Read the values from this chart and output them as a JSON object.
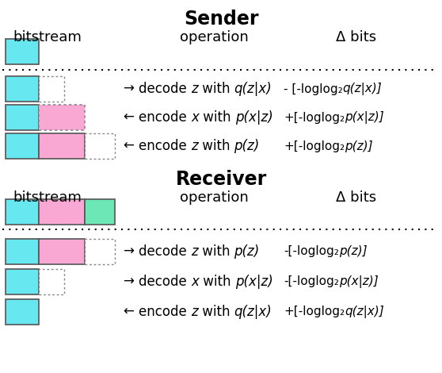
{
  "title_sender": "Sender",
  "title_receiver": "Receiver",
  "col_bitstream": "bitstream",
  "col_operation": "operation",
  "col_delta": "Δ bits",
  "cyan": "#67e8f0",
  "pink": "#f9a8d4",
  "mint": "#6ee7b7",
  "white": "#ffffff",
  "bg": "#ffffff",
  "sender_init_blocks": [
    {
      "color": "#67e8f0",
      "filled": true,
      "dotted": false
    }
  ],
  "sender_rows": [
    {
      "blocks": [
        {
          "color": "#67e8f0",
          "filled": true,
          "dotted": false
        },
        {
          "color": "#ffffff",
          "filled": false,
          "dotted": true
        }
      ],
      "arrow": "→",
      "op_parts": [
        "decode ",
        "z",
        " with ",
        "q(z|x)"
      ],
      "op_italic": [
        false,
        true,
        false,
        true
      ],
      "delta": "- [-log",
      "delta_sub": "2",
      "delta_end": "q(z|x)]",
      "delta_end_italic": true
    },
    {
      "blocks": [
        {
          "color": "#67e8f0",
          "filled": true,
          "dotted": false
        },
        {
          "color": "#f9a8d4",
          "filled": true,
          "dotted": true
        }
      ],
      "arrow": "←",
      "op_parts": [
        "encode ",
        "x",
        " with ",
        "p(x|z)"
      ],
      "op_italic": [
        false,
        true,
        false,
        true
      ],
      "delta": "+[-log",
      "delta_sub": "2",
      "delta_end": "p(x|z)]",
      "delta_end_italic": true
    },
    {
      "blocks": [
        {
          "color": "#67e8f0",
          "filled": true,
          "dotted": false
        },
        {
          "color": "#f9a8d4",
          "filled": true,
          "dotted": false
        },
        {
          "color": "#6ee7b7",
          "filled": false,
          "dotted": true
        }
      ],
      "arrow": "←",
      "op_parts": [
        "encode ",
        "z",
        " with ",
        "p(z)"
      ],
      "op_italic": [
        false,
        true,
        false,
        true
      ],
      "delta": "+[-log",
      "delta_sub": "2",
      "delta_end": "p(z)]",
      "delta_end_italic": true
    }
  ],
  "receiver_init_blocks": [
    {
      "color": "#67e8f0",
      "filled": true,
      "dotted": false
    },
    {
      "color": "#f9a8d4",
      "filled": true,
      "dotted": false
    },
    {
      "color": "#6ee7b7",
      "filled": true,
      "dotted": false
    }
  ],
  "receiver_rows": [
    {
      "blocks": [
        {
          "color": "#67e8f0",
          "filled": true,
          "dotted": false
        },
        {
          "color": "#f9a8d4",
          "filled": true,
          "dotted": false
        },
        {
          "color": "#ffffff",
          "filled": false,
          "dotted": true
        }
      ],
      "arrow": "→",
      "op_parts": [
        "decode ",
        "z",
        " with ",
        "p(z)"
      ],
      "op_italic": [
        false,
        true,
        false,
        true
      ],
      "delta": "-[-log",
      "delta_sub": "2",
      "delta_end": "p(z)]",
      "delta_end_italic": true
    },
    {
      "blocks": [
        {
          "color": "#67e8f0",
          "filled": true,
          "dotted": false
        },
        {
          "color": "#ffffff",
          "filled": false,
          "dotted": true
        }
      ],
      "arrow": "→",
      "op_parts": [
        "decode ",
        "x",
        " with ",
        "p(x|z)"
      ],
      "op_italic": [
        false,
        true,
        false,
        true
      ],
      "delta": "-[-log",
      "delta_sub": "2",
      "delta_end": "p(x|z)]",
      "delta_end_italic": true
    },
    {
      "blocks": [
        {
          "color": "#67e8f0",
          "filled": true,
          "dotted": false
        }
      ],
      "arrow": "←",
      "op_parts": [
        "encode ",
        "z",
        " with ",
        "q(z|x)"
      ],
      "op_italic": [
        false,
        true,
        false,
        true
      ],
      "delta": "+[-log",
      "delta_sub": "2",
      "delta_end": "q(z|x)]",
      "delta_end_italic": true
    }
  ],
  "bw_cyan": 42,
  "bw_pink": 58,
  "bw_mint": 38,
  "bw_small": 38,
  "bh": 32
}
